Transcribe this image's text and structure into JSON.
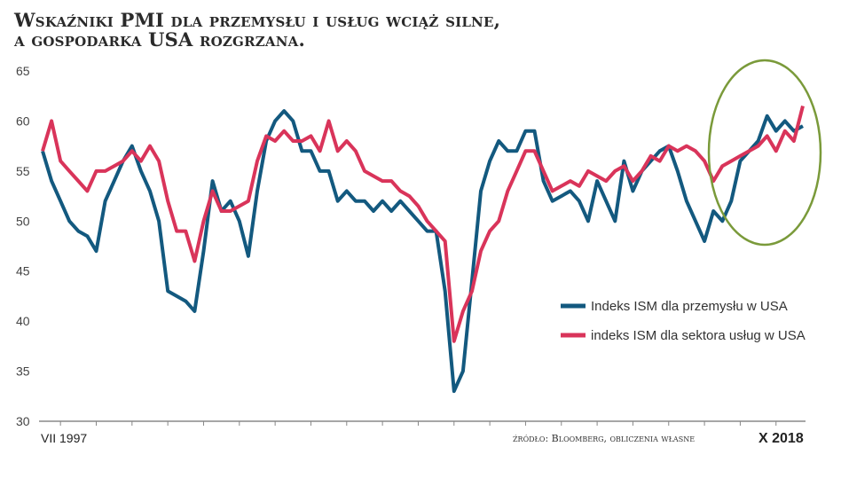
{
  "chart_data": {
    "type": "line",
    "title_line1": "Wskaźniki PMI dla przemysłu i usług wciąż silne,",
    "title_line2": "a gospodarka USA rozgrzana.",
    "xlabel_start": "VII 1997",
    "xlabel_end": "X 2018",
    "source": "źródło: Bloomberg, obliczenia własne",
    "ylim": [
      30,
      65
    ],
    "yticks": [
      "30",
      "35",
      "40",
      "45",
      "50",
      "55",
      "60",
      "65"
    ],
    "x_unit": "quarters since VII 1997 (approx.)",
    "grid": false,
    "legend_position": "right-middle",
    "colors": {
      "manufacturing": "#13597f",
      "services": "#d9345a",
      "highlight": "#7a9a3a"
    },
    "series": [
      {
        "name": "Indeks ISM dla przemysłu w USA",
        "color": "#13597f",
        "values": [
          57,
          54,
          52,
          50,
          49,
          48.5,
          47,
          52,
          54,
          56,
          57.5,
          55,
          53,
          50,
          43,
          42.5,
          42,
          41,
          47,
          54,
          51,
          52,
          50,
          46.5,
          53,
          58,
          60,
          61,
          60,
          57,
          57,
          55,
          55,
          52,
          53,
          52,
          52,
          51,
          52,
          51,
          52,
          51,
          50,
          49,
          49,
          43,
          33,
          35,
          44,
          53,
          56,
          58,
          57,
          57,
          59,
          59,
          54,
          52,
          52.5,
          53,
          52,
          50,
          54,
          52,
          50,
          56,
          53,
          55,
          56,
          57,
          57.5,
          55,
          52,
          50,
          48,
          51,
          50,
          52,
          56,
          57,
          58,
          60.5,
          59,
          60,
          59,
          59.5
        ]
      },
      {
        "name": "indeks ISM dla sektora usług w USA",
        "color": "#d9345a",
        "values": [
          57,
          60,
          56,
          55,
          54,
          53,
          55,
          55,
          55.5,
          56,
          57,
          56,
          57.5,
          56,
          52,
          49,
          49,
          46,
          50,
          53,
          51,
          51,
          51.5,
          52,
          56,
          58.5,
          58,
          59,
          58,
          58,
          58.5,
          57,
          60,
          57,
          58,
          57,
          55,
          54.5,
          54,
          54,
          53,
          52.5,
          51.5,
          50,
          49,
          48,
          38,
          41,
          43,
          47,
          49,
          50,
          53,
          55,
          57,
          57,
          55,
          53,
          53.5,
          54,
          53.5,
          55,
          54.5,
          54,
          55,
          55.5,
          54,
          55,
          56.5,
          56,
          57.5,
          57,
          57.5,
          57,
          56,
          54,
          55.5,
          56,
          56.5,
          57,
          57.5,
          58.5,
          57,
          59,
          58,
          61.5
        ]
      }
    ]
  }
}
